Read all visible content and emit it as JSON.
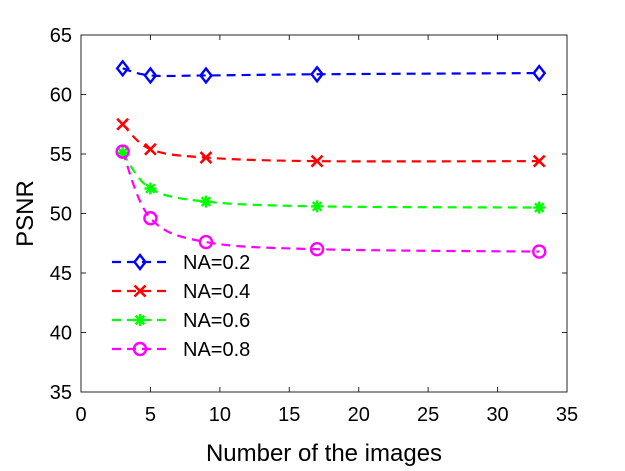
{
  "chart_data": {
    "type": "line",
    "title": "",
    "xlabel": "Number of the images",
    "ylabel": "PSNR",
    "xlim": [
      0,
      35
    ],
    "ylim": [
      35,
      65
    ],
    "xticks": [
      0,
      5,
      10,
      15,
      20,
      25,
      30,
      35
    ],
    "yticks": [
      35,
      40,
      45,
      50,
      55,
      60,
      65
    ],
    "grid": false,
    "legend_position": "left",
    "x": [
      3,
      5,
      9,
      17,
      33
    ],
    "series": [
      {
        "name": "NA=0.2",
        "color": "#0000ff",
        "marker": "diamond",
        "values": [
          62.2,
          61.6,
          61.6,
          61.7,
          61.8
        ]
      },
      {
        "name": "NA=0.4",
        "color": "#ff0000",
        "marker": "x",
        "values": [
          57.5,
          55.4,
          54.7,
          54.4,
          54.4
        ]
      },
      {
        "name": "NA=0.6",
        "color": "#00ff00",
        "marker": "asterisk",
        "values": [
          55.1,
          52.1,
          51.0,
          50.6,
          50.5
        ]
      },
      {
        "name": "NA=0.8",
        "color": "#ff00ff",
        "marker": "circle",
        "values": [
          55.2,
          49.6,
          47.6,
          47.0,
          46.8
        ]
      }
    ]
  }
}
